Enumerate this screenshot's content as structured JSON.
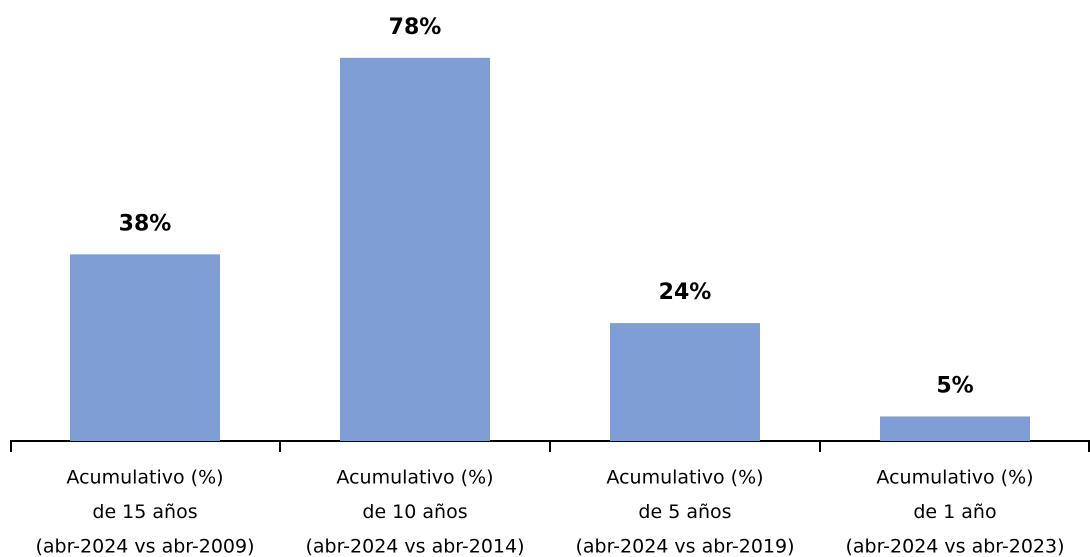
{
  "chart_data": {
    "type": "bar",
    "categories": [
      [
        "Acumulativo (%)",
        "de 15 años",
        "(abr-2024 vs abr-2009)"
      ],
      [
        "Acumulativo (%)",
        "de 10 años",
        "(abr-2024 vs abr-2014)"
      ],
      [
        "Acumulativo (%)",
        "de 5 años",
        "(abr-2024 vs abr-2019)"
      ],
      [
        "Acumulativo (%)",
        "de 1 año",
        "(abr-2024 vs abr-2023)"
      ]
    ],
    "values": [
      38,
      78,
      24,
      5
    ],
    "value_labels": [
      "38%",
      "78%",
      "24%",
      "5%"
    ],
    "color": "#7f9ed6",
    "ylim": [
      0,
      80
    ]
  }
}
